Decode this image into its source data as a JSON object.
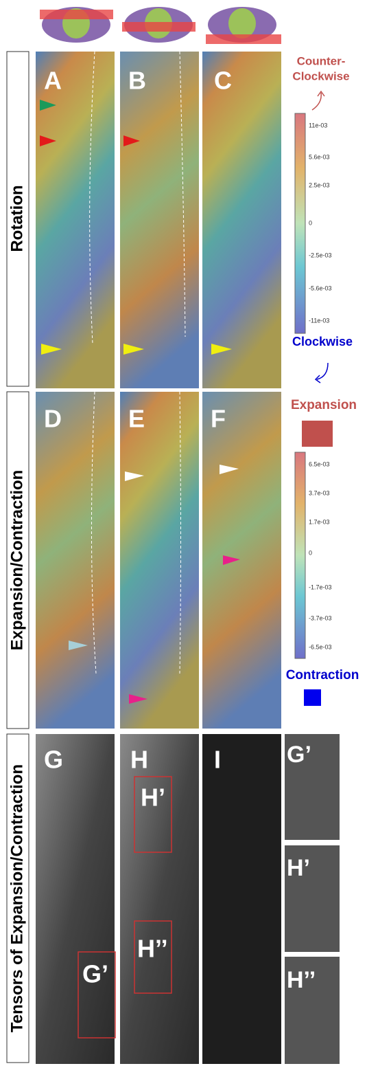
{
  "row_labels": [
    "Rotation",
    "Expansion/Contraction",
    "Tensors of Expansion/Contraction"
  ],
  "panels": [
    "A",
    "B",
    "C",
    "D",
    "E",
    "F",
    "G",
    "H",
    "I"
  ],
  "box_labels": [
    "H’",
    "H’’",
    "G’"
  ],
  "insets": [
    "G’",
    "H’",
    "H’’"
  ],
  "rotation_legend": {
    "top": [
      "Counter-",
      "Clockwise"
    ],
    "bottom": "Clockwise",
    "ticks": [
      "11e-03",
      "5.6e-03",
      "2.5e-03",
      "0",
      "-2.5e-03",
      "-5.6e-03",
      "-11e-03"
    ]
  },
  "expansion_legend": {
    "top": "Expansion",
    "bottom": "Contraction",
    "ticks": [
      "6.5e-03",
      "3.7e-03",
      "1.7e-03",
      "0",
      "-1.7e-03",
      "-3.7e-03",
      "-6.5e-03"
    ]
  }
}
